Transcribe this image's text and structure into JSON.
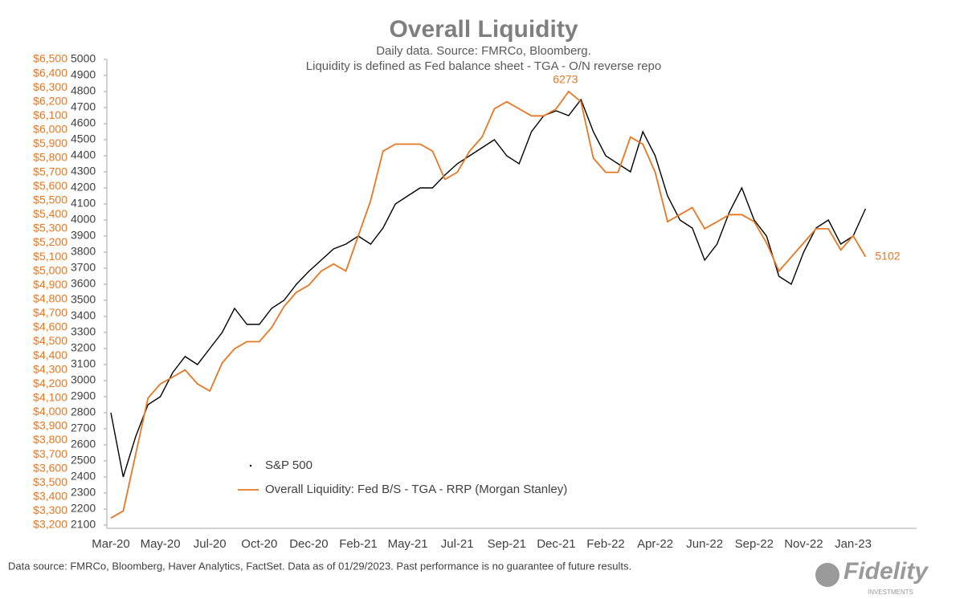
{
  "chart_data": {
    "type": "line",
    "title": "Overall Liquidity",
    "subtitle": [
      "Daily data.  Source: FMRCo, Bloomberg.",
      "Liquidity is defined as Fed balance sheet - TGA - O/N reverse repo"
    ],
    "footer": "Data source: FMRCo, Bloomberg, Haver Analytics, FactSet. Data as of 01/29/2023. Past performance is no guarantee of future results.",
    "logo": {
      "name": "Fidelity",
      "tagline": "INVESTMENTS"
    },
    "categories": [
      "Mar-20",
      null,
      null,
      null,
      "May-20",
      null,
      null,
      null,
      "Jul-20",
      null,
      null,
      null,
      "Oct-20",
      null,
      null,
      null,
      "Dec-20",
      null,
      null,
      null,
      "Feb-21",
      null,
      null,
      null,
      "May-21",
      null,
      null,
      null,
      "Jul-21",
      null,
      null,
      null,
      "Sep-21",
      null,
      null,
      null,
      "Dec-21",
      null,
      null,
      null,
      "Feb-22",
      null,
      null,
      null,
      "Apr-22",
      null,
      null,
      null,
      "Jun-22",
      null,
      null,
      null,
      "Sep-22",
      null,
      null,
      null,
      "Nov-22",
      null,
      null,
      null,
      "Jan-23",
      null,
      null,
      null,
      null,
      null
    ],
    "series": [
      {
        "name": "S&P 500",
        "color": "#000000",
        "axis": "y",
        "values": [
          2800,
          2400,
          2650,
          2850,
          2900,
          3050,
          3150,
          3100,
          3200,
          3300,
          3450,
          3350,
          3350,
          3450,
          3500,
          3600,
          3680,
          3750,
          3820,
          3850,
          3900,
          3850,
          3950,
          4100,
          4150,
          4200,
          4200,
          4280,
          4350,
          4400,
          4450,
          4500,
          4400,
          4350,
          4550,
          4650,
          4680,
          4650,
          4750,
          4550,
          4400,
          4350,
          4300,
          4550,
          4400,
          4150,
          4000,
          3950,
          3750,
          3850,
          4050,
          4200,
          4000,
          3900,
          3650,
          3600,
          3800,
          3950,
          4000,
          3850,
          3900,
          4070,
          null,
          null,
          null,
          null
        ]
      },
      {
        "name": "Overall Liquidity: Fed B/S - TGA - RRP (Morgan Stanley)",
        "color": "#e87722",
        "axis": "y2",
        "values": [
          3250,
          3300,
          3700,
          4100,
          4200,
          4250,
          4300,
          4200,
          4150,
          4350,
          4450,
          4500,
          4500,
          4600,
          4750,
          4850,
          4900,
          5000,
          5050,
          5000,
          5250,
          5500,
          5850,
          5900,
          5900,
          5900,
          5850,
          5650,
          5700,
          5850,
          5950,
          6150,
          6200,
          6150,
          6100,
          6100,
          6150,
          6273,
          6200,
          5800,
          5700,
          5700,
          5950,
          5900,
          5700,
          5350,
          5400,
          5450,
          5300,
          5350,
          5400,
          5400,
          5350,
          5200,
          5000,
          5100,
          5200,
          5300,
          5300,
          5150,
          5250,
          5102,
          null,
          null,
          null,
          null
        ]
      }
    ],
    "ylim": [
      2100,
      5000
    ],
    "yticks": [
      2100,
      2200,
      2300,
      2400,
      2500,
      2600,
      2700,
      2800,
      2900,
      3000,
      3100,
      3200,
      3300,
      3400,
      3500,
      3600,
      3700,
      3800,
      3900,
      4000,
      4100,
      4200,
      4300,
      4400,
      4500,
      4600,
      4700,
      4800,
      4900,
      5000
    ],
    "y2lim": [
      3200,
      6500
    ],
    "y2ticks": [
      {
        "value": 3200,
        "label": "$3,200"
      },
      {
        "value": 3300,
        "label": "$3,300"
      },
      {
        "value": 3400,
        "label": "$3,400"
      },
      {
        "value": 3500,
        "label": "$3,500"
      },
      {
        "value": 3600,
        "label": "$3,600"
      },
      {
        "value": 3700,
        "label": "$3,700"
      },
      {
        "value": 3800,
        "label": "$3,800"
      },
      {
        "value": 3900,
        "label": "$3,900"
      },
      {
        "value": 4000,
        "label": "$4,000"
      },
      {
        "value": 4100,
        "label": "$4,100"
      },
      {
        "value": 4200,
        "label": "$4,200"
      },
      {
        "value": 4300,
        "label": "$4,300"
      },
      {
        "value": 4400,
        "label": "$4,400"
      },
      {
        "value": 4500,
        "label": "$4,500"
      },
      {
        "value": 4600,
        "label": "$4,600"
      },
      {
        "value": 4700,
        "label": "$4,700"
      },
      {
        "value": 4800,
        "label": "$4,800"
      },
      {
        "value": 4900,
        "label": "$4,900"
      },
      {
        "value": 5000,
        "label": "$5,000"
      },
      {
        "value": 5100,
        "label": "$5,100"
      },
      {
        "value": 5200,
        "label": "$5,200"
      },
      {
        "value": 5300,
        "label": "$5,300"
      },
      {
        "value": 5400,
        "label": "$5,400"
      },
      {
        "value": 5500,
        "label": "$5,500"
      },
      {
        "value": 5600,
        "label": "$5,600"
      },
      {
        "value": 5700,
        "label": "$5,700"
      },
      {
        "value": 5800,
        "label": "$5,800"
      },
      {
        "value": 5900,
        "label": "$5,900"
      },
      {
        "value": 6000,
        "label": "$6,000"
      },
      {
        "value": 6100,
        "label": "$6,100"
      },
      {
        "value": 6200,
        "label": "$6,200"
      },
      {
        "value": 6300,
        "label": "$6,300"
      },
      {
        "value": 6400,
        "label": "$6,400"
      },
      {
        "value": 6500,
        "label": "$6,500"
      }
    ],
    "grid": false
  }
}
